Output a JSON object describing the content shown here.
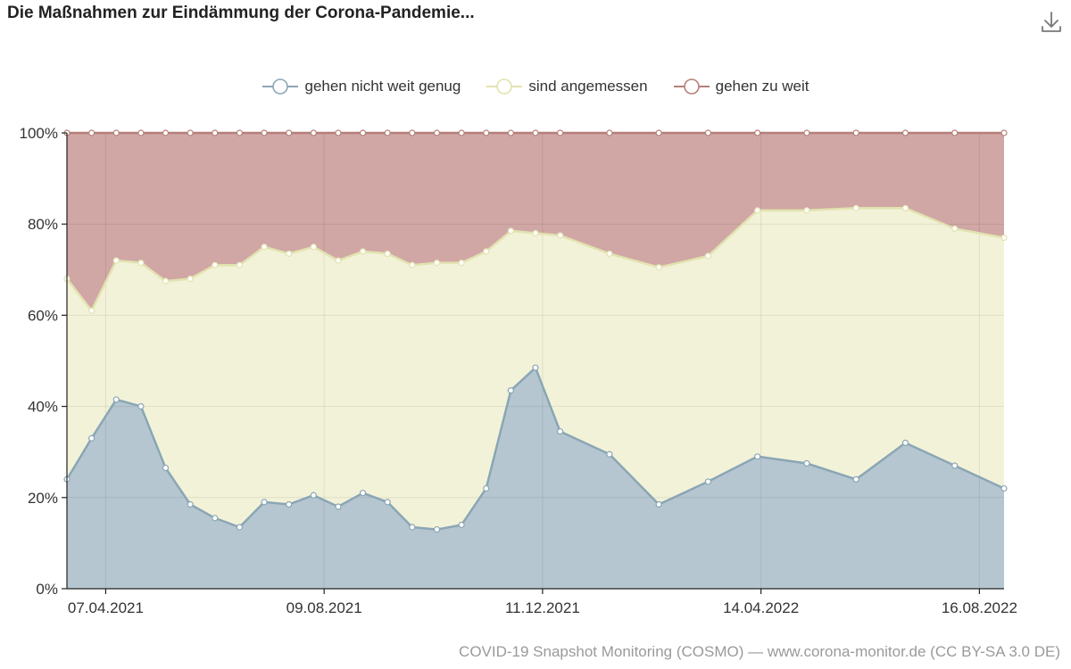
{
  "title": "Die Maßnahmen zur Eindämmung der Corona-Pandemie...",
  "download_icon": "download-icon",
  "source": "COVID-19 Snapshot Monitoring (COSMO) — www.corona-monitor.de (CC BY-SA 3.0 DE)",
  "chart_data": {
    "type": "area",
    "stacked": true,
    "normalized": true,
    "title": "Die Maßnahmen zur Eindämmung der Corona-Pandemie...",
    "xlabel": "",
    "ylabel": "",
    "ylim": [
      0,
      100
    ],
    "yticks": [
      "0%",
      "20%",
      "40%",
      "60%",
      "80%",
      "100%"
    ],
    "xticks": [
      "07.04.2021",
      "09.08.2021",
      "11.12.2021",
      "14.04.2022",
      "16.08.2022"
    ],
    "legend_position": "top-center",
    "grid": true,
    "x": [
      "2021-03-16",
      "2021-03-30",
      "2021-04-13",
      "2021-04-27",
      "2021-05-11",
      "2021-05-25",
      "2021-06-08",
      "2021-06-22",
      "2021-07-06",
      "2021-07-20",
      "2021-08-03",
      "2021-08-17",
      "2021-08-31",
      "2021-09-14",
      "2021-09-28",
      "2021-10-12",
      "2021-10-26",
      "2021-11-09",
      "2021-11-23",
      "2021-12-07",
      "2021-12-21",
      "2022-01-18",
      "2022-02-15",
      "2022-03-15",
      "2022-04-12",
      "2022-05-10",
      "2022-06-07",
      "2022-07-05",
      "2022-08-02",
      "2022-08-30"
    ],
    "series": [
      {
        "name": "gehen nicht weit genug",
        "color": "#9db3c0",
        "values": [
          24,
          33,
          41.5,
          40,
          26.5,
          18.5,
          15.5,
          13.5,
          19,
          18.5,
          20.5,
          18,
          21,
          19,
          13.5,
          13,
          14,
          22,
          43.5,
          48.5,
          34.5,
          29.5,
          18.5,
          23.5,
          29,
          27.5,
          24,
          32,
          27,
          22
        ]
      },
      {
        "name": "sind angemessen",
        "color": "#eeeecb",
        "values": [
          44,
          28,
          30.5,
          31.5,
          41,
          49.5,
          55.5,
          57.5,
          56,
          55,
          54.5,
          54,
          53,
          54.5,
          57.5,
          58.5,
          57.5,
          52,
          35,
          29.5,
          43,
          44,
          52,
          49.5,
          54,
          55.5,
          59.5,
          51.5,
          52,
          55
        ]
      },
      {
        "name": "gehen zu weit",
        "color": "#c08a85",
        "values": [
          32,
          39,
          28,
          28.5,
          32.5,
          32,
          29,
          29,
          25,
          26.5,
          25,
          28,
          26,
          26.5,
          29,
          28.5,
          28.5,
          26,
          21.5,
          22,
          22.5,
          26.5,
          29.5,
          27,
          17,
          17,
          16.5,
          16.5,
          21,
          23
        ]
      }
    ]
  }
}
